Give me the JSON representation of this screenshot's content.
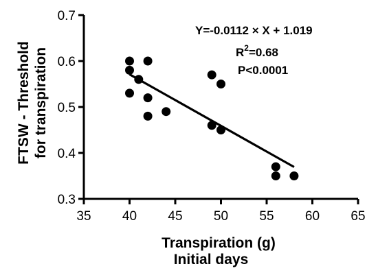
{
  "chart_data": {
    "type": "scatter",
    "title": "",
    "xlabel": "Transpiration (g)",
    "xlabel2": "Initial days",
    "ylabel": "FTSW - Threshold",
    "ylabel2": "for transpiration",
    "xlim": [
      35,
      65
    ],
    "ylim": [
      0.3,
      0.7
    ],
    "xticks": [
      "35",
      "40",
      "45",
      "50",
      "55",
      "60",
      "65"
    ],
    "yticks": [
      "0.3",
      "0.4",
      "0.5",
      "0.6",
      "0.7"
    ],
    "grid": false,
    "points": [
      {
        "x": 40,
        "y": 0.6
      },
      {
        "x": 40,
        "y": 0.58
      },
      {
        "x": 40,
        "y": 0.53
      },
      {
        "x": 41,
        "y": 0.56
      },
      {
        "x": 42,
        "y": 0.6
      },
      {
        "x": 42,
        "y": 0.52
      },
      {
        "x": 42,
        "y": 0.48
      },
      {
        "x": 44,
        "y": 0.49
      },
      {
        "x": 49,
        "y": 0.57
      },
      {
        "x": 49,
        "y": 0.46
      },
      {
        "x": 50,
        "y": 0.55
      },
      {
        "x": 50,
        "y": 0.45
      },
      {
        "x": 56,
        "y": 0.37
      },
      {
        "x": 56,
        "y": 0.35
      },
      {
        "x": 58,
        "y": 0.35
      }
    ],
    "regression": {
      "slope": -0.0112,
      "intercept": 1.019,
      "x_range": [
        40,
        58
      ]
    },
    "annotations": {
      "equation": "Y=-0.0112 × X + 1.019",
      "r2_prefix": "R",
      "r2_sup": "2",
      "r2_value": "=0.68",
      "p": "P<0.0001"
    },
    "colors": {
      "points": "#000000",
      "line": "#000000",
      "axes": "#000000"
    }
  }
}
